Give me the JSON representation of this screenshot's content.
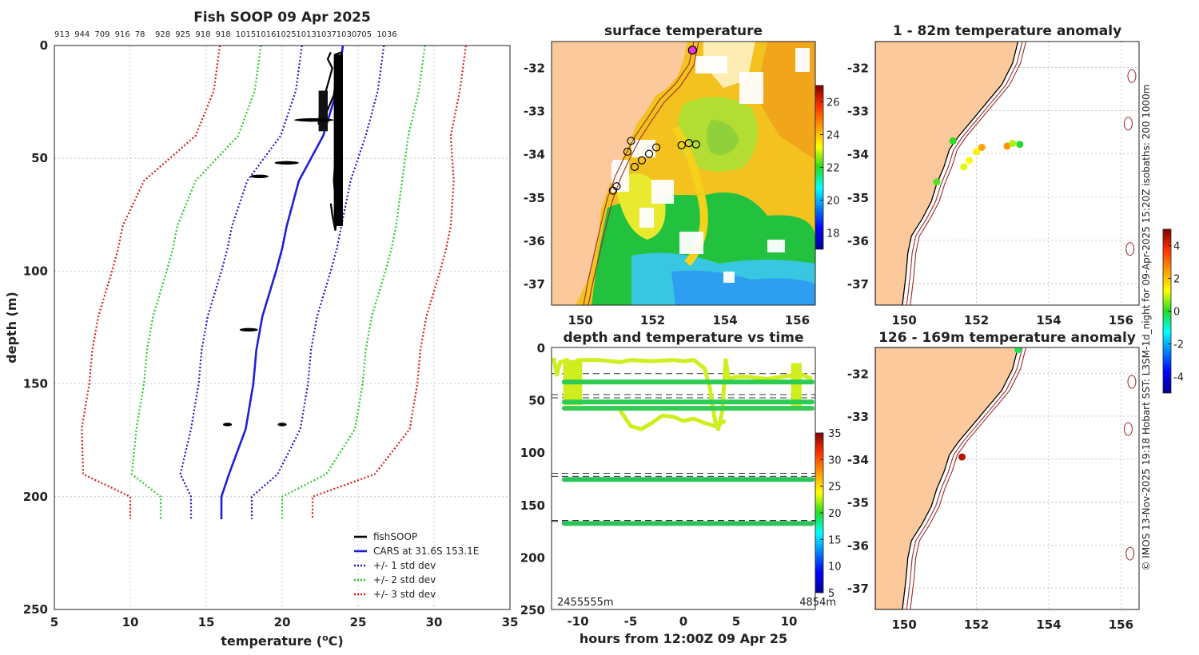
{
  "main": {
    "title": "Fish SOOP 09 Apr 2025",
    "top_numbers": [
      "913",
      "944",
      "709",
      "916",
      "78",
      "928",
      "925",
      "918",
      "918",
      "1015",
      "1016",
      "1025",
      "1013",
      "1037",
      "1030",
      "705",
      "1036"
    ]
  },
  "colorbar_sst": {
    "ticks": [
      "26",
      "24",
      "22",
      "20",
      "18"
    ]
  },
  "colorbar_time": {
    "ticks": [
      "35",
      "30",
      "25",
      "20",
      "15",
      "10",
      "5"
    ]
  },
  "colorbar_anom": {
    "ticks": [
      "4",
      "2",
      "0",
      "-2",
      "-4"
    ]
  },
  "side_note": "© IMOS 13-Nov-2025 19:18 Hobart SST: L3SM-1d_night for 09-Apr-2025 15:20Z isobaths: 200  1000m",
  "panel_time": {
    "bottom_left_label": "2455555m",
    "bottom_right_label": "4854m"
  },
  "chart_data": [
    {
      "type": "line",
      "id": "profile",
      "title": "Fish SOOP 09 Apr 2025",
      "xlabel": "temperature (°C)",
      "ylabel": "depth (m)",
      "xlim": [
        5,
        35
      ],
      "ylim": [
        250,
        0
      ],
      "xticks": [
        5,
        10,
        15,
        20,
        25,
        30,
        35
      ],
      "yticks": [
        0,
        50,
        100,
        150,
        200,
        250
      ],
      "depths": [
        0,
        20,
        40,
        60,
        80,
        90,
        100,
        120,
        135,
        150,
        170,
        190,
        200,
        210
      ],
      "cars_mean": [
        24.0,
        23.6,
        22.7,
        21.1,
        20.3,
        20.0,
        19.6,
        18.7,
        18.3,
        18.1,
        17.6,
        16.5,
        16.0,
        16.0
      ],
      "std_dev": [
        2.7,
        2.7,
        2.8,
        3.4,
        3.6,
        3.6,
        3.6,
        3.6,
        3.6,
        3.6,
        3.6,
        3.2,
        2.0,
        2.0
      ],
      "series": [
        {
          "name": "fishSOOP",
          "color": "#000000",
          "style": "solid"
        },
        {
          "name": "CARS at 31.6S 153.1E",
          "color": "#1f1fd6",
          "style": "solid"
        },
        {
          "name": "+/- 1 std dev",
          "color": "#1a1acc",
          "style": "dotted"
        },
        {
          "name": "+/- 2 std dev",
          "color": "#22cc22",
          "style": "dotted"
        },
        {
          "name": "+/- 3 std dev",
          "color": "#dd1a1a",
          "style": "dotted"
        }
      ],
      "fishsoop_blobs": [
        {
          "t": 22.1,
          "d": 33,
          "w": 1.3
        },
        {
          "t": 20.3,
          "d": 52,
          "w": 0.8
        },
        {
          "t": 18.5,
          "d": 58,
          "w": 0.6
        },
        {
          "t": 17.8,
          "d": 126,
          "w": 0.6
        },
        {
          "t": 16.4,
          "d": 168,
          "w": 0.3
        },
        {
          "t": 20.0,
          "d": 168,
          "w": 0.3
        }
      ],
      "legend_position": "bottom-right"
    },
    {
      "type": "heatmap",
      "id": "sst",
      "title": "surface temperature",
      "xlim": [
        149.2,
        156.5
      ],
      "ylim": [
        -37.5,
        -31.4
      ],
      "xticks": [
        150,
        152,
        154,
        156
      ],
      "yticks": [
        -32,
        -33,
        -34,
        -35,
        -36,
        -37
      ],
      "colorbar": {
        "min": 17,
        "max": 27
      },
      "markers": [
        {
          "lon": 151.0,
          "lat": -34.75
        },
        {
          "lon": 150.9,
          "lat": -34.85
        },
        {
          "lon": 151.4,
          "lat": -33.7
        },
        {
          "lon": 151.3,
          "lat": -33.95
        },
        {
          "lon": 151.5,
          "lat": -34.3
        },
        {
          "lon": 151.7,
          "lat": -34.15
        },
        {
          "lon": 151.9,
          "lat": -34.0
        },
        {
          "lon": 152.1,
          "lat": -33.85
        },
        {
          "lon": 152.8,
          "lat": -33.8
        },
        {
          "lon": 153.0,
          "lat": -33.75
        },
        {
          "lon": 153.2,
          "lat": -33.78
        },
        {
          "lon": 153.1,
          "lat": -31.6
        }
      ]
    },
    {
      "type": "scatter",
      "id": "depth_time",
      "title": "depth and temperature vs time",
      "xlabel": "hours from 12:00Z 09 Apr 25",
      "xlim": [
        -12.5,
        12.5
      ],
      "ylim": [
        250,
        0
      ],
      "xticks": [
        -10,
        -5,
        0,
        5,
        10
      ],
      "yticks": [
        0,
        50,
        100,
        150,
        200,
        250
      ],
      "dashed_depths": [
        25,
        45,
        48,
        120,
        123,
        165,
        166
      ],
      "bands": [
        {
          "depth": 33,
          "color": "#2ecc55"
        },
        {
          "depth": 52,
          "color": "#2ecc55"
        },
        {
          "depth": 58,
          "color": "#36c953"
        },
        {
          "depth": 126,
          "color": "#2bc45a"
        },
        {
          "depth": 168,
          "color": "#2bc45a"
        }
      ],
      "shallow_track_color": "#d0ee1f"
    },
    {
      "type": "scatter",
      "id": "anom_shallow",
      "title": "1 - 82m temperature anomaly",
      "xlim": [
        149.2,
        156.5
      ],
      "ylim": [
        -37.5,
        -31.4
      ],
      "xticks": [
        150,
        152,
        154,
        156
      ],
      "yticks": [
        -32,
        -33,
        -34,
        -35,
        -36,
        -37
      ],
      "points": [
        {
          "lon": 151.35,
          "lat": -33.7,
          "anom": 0.3
        },
        {
          "lon": 150.9,
          "lat": -34.65,
          "anom": 0.5
        },
        {
          "lon": 151.65,
          "lat": -34.3,
          "anom": 1.3
        },
        {
          "lon": 151.8,
          "lat": -34.15,
          "anom": 1.5
        },
        {
          "lon": 152.0,
          "lat": -33.95,
          "anom": 1.6
        },
        {
          "lon": 152.15,
          "lat": -33.85,
          "anom": 2.5
        },
        {
          "lon": 152.85,
          "lat": -33.82,
          "anom": 2.7
        },
        {
          "lon": 153.0,
          "lat": -33.76,
          "anom": 1.0
        },
        {
          "lon": 153.2,
          "lat": -33.78,
          "anom": 0.2
        }
      ]
    },
    {
      "type": "scatter",
      "id": "anom_deep",
      "title": "126 - 169m temperature anomaly",
      "xlim": [
        149.2,
        156.5
      ],
      "ylim": [
        -37.5,
        -31.4
      ],
      "xticks": [
        150,
        152,
        154,
        156
      ],
      "yticks": [
        -32,
        -33,
        -34,
        -35,
        -36,
        -37
      ],
      "points": [
        {
          "lon": 153.15,
          "lat": -31.45,
          "anom": 0.0
        },
        {
          "lon": 151.6,
          "lat": -33.95,
          "anom": 4.5
        }
      ]
    }
  ]
}
